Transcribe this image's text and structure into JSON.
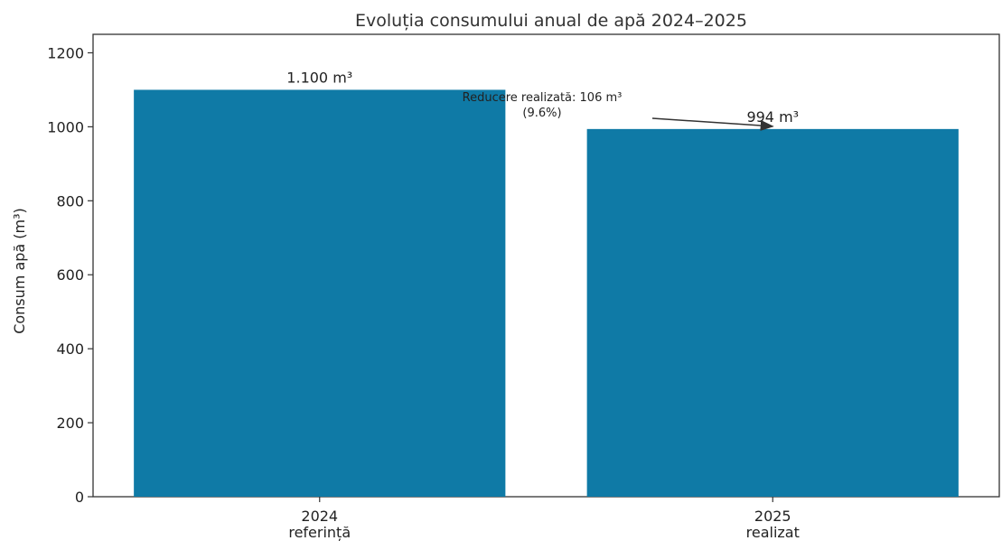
{
  "chart_data": {
    "type": "bar",
    "title": "Evoluția consumului anual de apă 2024–2025",
    "xlabel": "",
    "ylabel": "Consum apă (m³)",
    "ylim": [
      0,
      1250
    ],
    "yticks": [
      0,
      200,
      400,
      600,
      800,
      1000,
      1200
    ],
    "categories": [
      [
        "2024",
        "referință"
      ],
      [
        "2025",
        "realizat"
      ]
    ],
    "values": [
      1100,
      994
    ],
    "value_labels": [
      "1.100 m³",
      "994 m³"
    ],
    "bar_color": "#0f7aa6",
    "grid": false,
    "annotation": {
      "lines": [
        "Reducere realizată: 106 m³",
        "(9.6%)"
      ],
      "arrow_target_category": 1,
      "arrow_target_value": 994
    }
  }
}
